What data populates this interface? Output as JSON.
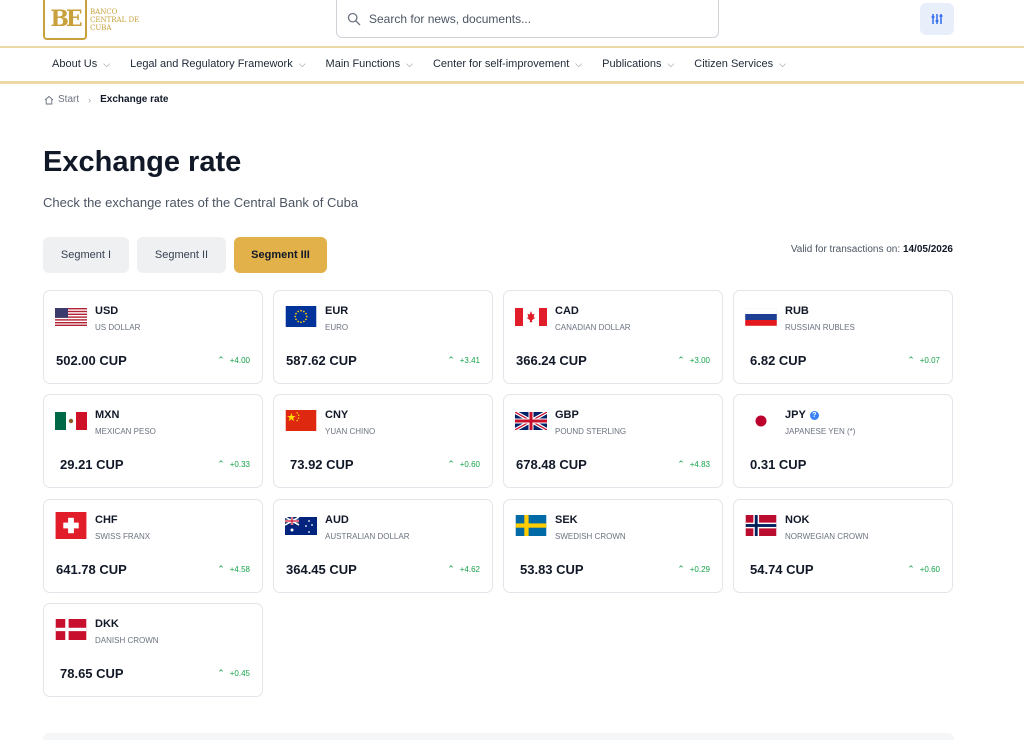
{
  "header": {
    "logo_text": [
      "BANCO",
      "CENTRAL DE",
      "CUBA"
    ],
    "search_placeholder": "Search for news, documents..."
  },
  "nav": {
    "items": [
      {
        "label": "About Us"
      },
      {
        "label": "Legal and Regulatory Framework"
      },
      {
        "label": "Main Functions"
      },
      {
        "label": "Center for self-improvement"
      },
      {
        "label": "Publications"
      },
      {
        "label": "Citizen Services"
      }
    ]
  },
  "breadcrumb": {
    "home": "Start",
    "current": "Exchange rate"
  },
  "page": {
    "title": "Exchange rate",
    "subtitle": "Check the exchange rates of the Central Bank of Cuba",
    "valid_label": "Valid for transactions on:",
    "valid_date": "14/05/2026"
  },
  "segments": [
    {
      "label": "Segment I",
      "active": false
    },
    {
      "label": "Segment II",
      "active": false
    },
    {
      "label": "Segment III",
      "active": true
    }
  ],
  "currencies": [
    {
      "code": "USD",
      "name": "US DOLLAR",
      "rate": "502.00 CUP",
      "change": "+4.00",
      "flag": "us-flag"
    },
    {
      "code": "EUR",
      "name": "EURO",
      "rate": "587.62 CUP",
      "change": "+3.41",
      "flag": "eu-flag"
    },
    {
      "code": "CAD",
      "name": "CANADIAN DOLLAR",
      "rate": "366.24 CUP",
      "change": "+3.00",
      "flag": "canada-flag"
    },
    {
      "code": "RUB",
      "name": "RUSSIAN RUBLES",
      "rate": "6.82 CUP",
      "change": "+0.07",
      "flag": "russia-flag"
    },
    {
      "code": "MXN",
      "name": "MEXICAN PESO",
      "rate": "29.21 CUP",
      "change": "+0.33",
      "flag": "mexico-flag"
    },
    {
      "code": "CNY",
      "name": "YUAN CHINO",
      "rate": "73.92 CUP",
      "change": "+0.60",
      "flag": "china-flag"
    },
    {
      "code": "GBP",
      "name": "POUND STERLING",
      "rate": "678.48 CUP",
      "change": "+4.83",
      "flag": "uk-flag"
    },
    {
      "code": "JPY",
      "name": "JAPANESE YEN (*)",
      "rate": "0.31 CUP",
      "change": "",
      "flag": "japan-flag",
      "info": true
    },
    {
      "code": "CHF",
      "name": "SWISS FRANX",
      "rate": "641.78 CUP",
      "change": "+4.58",
      "flag": "swiss-flag"
    },
    {
      "code": "AUD",
      "name": "AUSTRALIAN DOLLAR",
      "rate": "364.45 CUP",
      "change": "+4.62",
      "flag": "australia-flag"
    },
    {
      "code": "SEK",
      "name": "SWEDISH CROWN",
      "rate": "53.83 CUP",
      "change": "+0.29",
      "flag": "sweden-flag"
    },
    {
      "code": "NOK",
      "name": "NORWEGIAN CROWN",
      "rate": "54.74 CUP",
      "change": "+0.60",
      "flag": "norway-flag"
    },
    {
      "code": "DKK",
      "name": "DANISH CROWN",
      "rate": "78.65 CUP",
      "change": "+0.45",
      "flag": "denmark-flag"
    }
  ],
  "colors": {
    "accent": "#e2b14a",
    "positive": "#16a34a",
    "logo": "#c9a13c"
  }
}
